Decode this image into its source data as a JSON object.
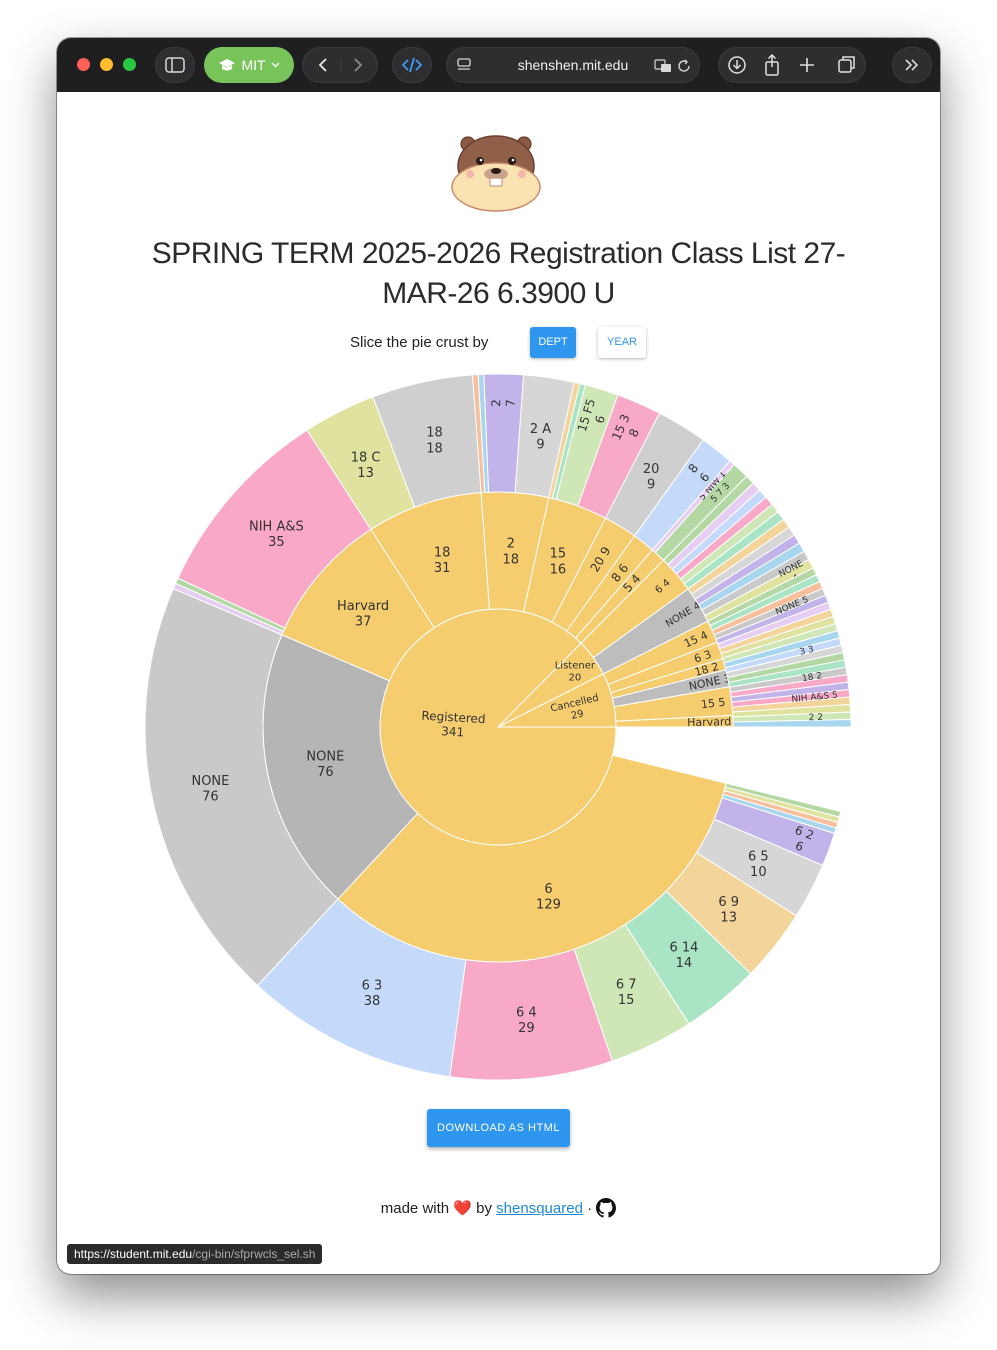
{
  "browser": {
    "url": "shenshen.mit.edu",
    "profile_label": "MIT"
  },
  "page": {
    "title": "SPRING TERM 2025-2026 Registration Class List 27-MAR-26 6.3900 U",
    "slice_label": "Slice the pie crust by",
    "buttons": {
      "dept": "DEPT",
      "year": "YEAR",
      "download": "DOWNLOAD AS HTML"
    },
    "footer": {
      "prefix": "made with",
      "heart": "❤️",
      "by": "by",
      "author": "shensquared",
      "separator": "·"
    },
    "status_url_host": "https://student.mit.edu",
    "status_url_path": "/cgi-bin/sfprwcls_sel.sh"
  },
  "colors": {
    "accent": "#2f96ef",
    "registered": "#f5cc6e",
    "none": "#b5b5b5",
    "nih": "#f9a8c8"
  },
  "chart_data": {
    "type": "sunburst",
    "title": "",
    "root": [
      {
        "label": "Registered",
        "value": 341
      },
      {
        "label": "Listener",
        "value": 20
      },
      {
        "label": "Cancelled",
        "value": 29
      }
    ],
    "registered_dept": [
      {
        "label": "6",
        "value": 129
      },
      {
        "label": "NONE",
        "value": 76
      },
      {
        "label": "Harvard",
        "value": 37
      },
      {
        "label": "18",
        "value": 31
      },
      {
        "label": "2",
        "value": 18
      },
      {
        "label": "15",
        "value": 16
      },
      {
        "label": "20",
        "value": 9
      },
      {
        "label": "8",
        "value": 6
      },
      {
        "label": "5",
        "value": 4
      }
    ],
    "outer_labels": [
      {
        "label": "6 3",
        "value": 38
      },
      {
        "label": "6 4",
        "value": 29
      },
      {
        "label": "6 7",
        "value": 15
      },
      {
        "label": "6 14",
        "value": 14
      },
      {
        "label": "6 9",
        "value": 13
      },
      {
        "label": "6 5",
        "value": 10
      },
      {
        "label": "6 2",
        "value": 6
      },
      {
        "label": "NONE",
        "value": 76
      },
      {
        "label": "NIH A&S",
        "value": 35
      },
      {
        "label": "18",
        "value": 18
      },
      {
        "label": "18 C",
        "value": 13
      },
      {
        "label": "2 A",
        "value": 9
      },
      {
        "label": "2",
        "value": 7
      },
      {
        "label": "15 3",
        "value": 8
      },
      {
        "label": "15 F5",
        "value": 6
      },
      {
        "label": "20",
        "value": 9
      },
      {
        "label": "8",
        "value": 6
      },
      {
        "label": "5 7",
        "value": 3
      },
      {
        "label": "5 NIW",
        "value": 1
      }
    ],
    "listener_dept": [
      {
        "label": "6",
        "value": 4
      },
      {
        "label": "NONE",
        "value": 4
      }
    ],
    "listener_outer": [
      {
        "label": "NONE",
        "value": 4
      }
    ],
    "cancelled_dept": [
      {
        "label": "15",
        "value": 4
      },
      {
        "label": "6",
        "value": 3
      },
      {
        "label": "18",
        "value": 2
      },
      {
        "label": "NONE",
        "value": 3
      },
      {
        "label": "15",
        "value": 5
      },
      {
        "label": "Harvard",
        "value": 2
      }
    ],
    "cancelled_outer": [
      {
        "label": "NONE",
        "value": 5
      },
      {
        "label": "NIH A&S",
        "value": 5
      },
      {
        "label": "2",
        "value": 2
      },
      {
        "label": "3",
        "value": 3
      },
      {
        "label": "18",
        "value": 2
      }
    ]
  }
}
